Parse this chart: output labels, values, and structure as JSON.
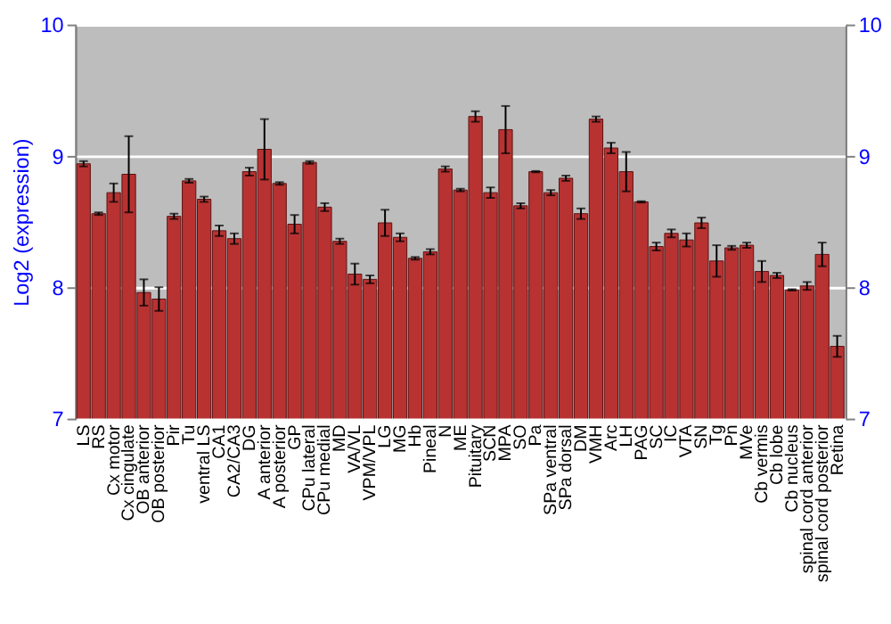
{
  "chart_data": {
    "type": "bar",
    "ylabel": "Log2 (expression)",
    "categories": [
      "LS",
      "RS",
      "Cx motor",
      "Cx cingulate",
      "OB anterior",
      "OB posterior",
      "Pir",
      "Tu",
      "ventral LS",
      "CA1",
      "CA2/CA3",
      "DG",
      "A anterior",
      "A posterior",
      "GP",
      "CPu lateral",
      "CPu medial",
      "MD",
      "VA/VL",
      "VPM/VPL",
      "LG",
      "MG",
      "Hb",
      "Pineal",
      "N",
      "ME",
      "Pituitary",
      "SCN",
      "MPA",
      "SO",
      "Pa",
      "SPa ventral",
      "SPa dorsal",
      "DM",
      "VMH",
      "Arc",
      "LH",
      "PAG",
      "SC",
      "IC",
      "VTA",
      "SN",
      "Tg",
      "Pn",
      "MVe",
      "Cb vermis",
      "Cb lobe",
      "Cb nucleus",
      "spinal cord anterior",
      "spinal cord posterior",
      "Retina"
    ],
    "values": [
      8.94,
      8.56,
      8.72,
      8.86,
      7.96,
      7.91,
      8.54,
      8.81,
      8.67,
      8.43,
      8.37,
      8.88,
      9.05,
      8.79,
      8.48,
      8.95,
      8.61,
      8.35,
      8.1,
      8.06,
      8.49,
      8.38,
      8.22,
      8.27,
      8.9,
      8.74,
      9.3,
      8.72,
      9.2,
      8.62,
      8.88,
      8.72,
      8.83,
      8.56,
      9.28,
      9.06,
      8.88,
      8.65,
      8.31,
      8.41,
      8.36,
      8.49,
      8.2,
      8.3,
      8.32,
      8.12,
      8.09,
      7.98,
      8.01,
      8.25,
      7.55
    ],
    "errors": [
      0.02,
      0.01,
      0.07,
      0.29,
      0.1,
      0.09,
      0.02,
      0.015,
      0.02,
      0.04,
      0.04,
      0.03,
      0.23,
      0.01,
      0.07,
      0.01,
      0.03,
      0.02,
      0.08,
      0.03,
      0.1,
      0.03,
      0.01,
      0.02,
      0.02,
      0.01,
      0.04,
      0.04,
      0.18,
      0.02,
      0.005,
      0.02,
      0.02,
      0.04,
      0.02,
      0.04,
      0.15,
      0.005,
      0.03,
      0.03,
      0.05,
      0.04,
      0.12,
      0.015,
      0.02,
      0.08,
      0.02,
      0.005,
      0.03,
      0.09,
      0.08
    ],
    "color": "#b83232",
    "ylim": [
      7,
      10
    ],
    "yticks": [
      7,
      8,
      9,
      10
    ],
    "y2lim": [
      7,
      10
    ],
    "y2ticks": [
      7,
      8,
      9,
      10
    ],
    "grid": "y"
  }
}
